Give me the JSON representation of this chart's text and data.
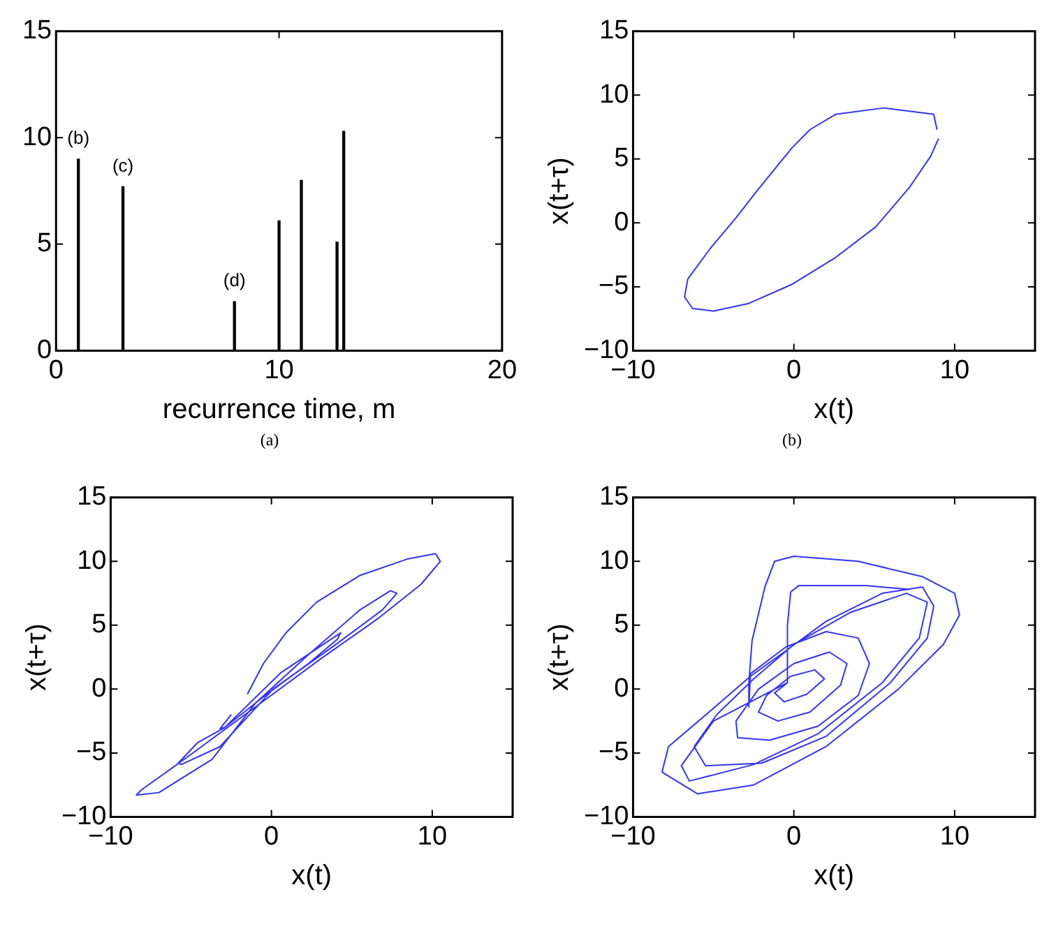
{
  "chart_data": [
    {
      "type": "bar",
      "xlabel": "recurrence time, m",
      "x": [
        1,
        3,
        8,
        10,
        11,
        12.6,
        12.9
      ],
      "values": [
        9,
        7.7,
        2.3,
        6.1,
        8,
        5.1,
        10.3
      ],
      "color": "#000000",
      "xlim": [
        0,
        20
      ],
      "xticks": [
        0,
        10,
        20
      ],
      "ylim": [
        0,
        15
      ],
      "yticks": [
        0,
        5,
        10,
        15
      ],
      "annotations": [
        {
          "text": "(b)",
          "x": 1,
          "y": 9
        },
        {
          "text": "(c)",
          "x": 3,
          "y": 7.7
        },
        {
          "text": "(d)",
          "x": 8,
          "y": 2.3
        },
        "(a)"
      ]
    },
    {
      "type": "line",
      "xlabel": "x(t)",
      "ylabel": "x(t+τ)",
      "marker": "none",
      "line_style": "solid",
      "xlim": [
        -10,
        15
      ],
      "xticks": [
        -10,
        0,
        10
      ],
      "ylim": [
        -10,
        15
      ],
      "yticks": [
        -10,
        -5,
        0,
        5,
        10,
        15
      ],
      "annotations": [
        "(b)"
      ],
      "series": [
        {
          "color": "#3333ff",
          "x": [
            8.9,
            8.7,
            5.6,
            2.6,
            1.0,
            -0.1,
            -1.2,
            -2.3,
            -3.6,
            -5.2,
            -6.6,
            -6.8,
            -6.3,
            -5.0,
            -2.8,
            -0.1,
            2.6,
            5.1,
            7.2,
            8.5,
            9.0
          ],
          "values": [
            7.3,
            8.5,
            9.0,
            8.5,
            7.3,
            5.9,
            4.2,
            2.5,
            0.4,
            -2.0,
            -4.4,
            -5.8,
            -6.7,
            -6.9,
            -6.3,
            -4.8,
            -2.7,
            -0.3,
            2.8,
            5.2,
            6.6
          ]
        }
      ]
    },
    {
      "type": "line",
      "xlabel": "x(t)",
      "ylabel": "x(t+τ)",
      "marker": "none",
      "line_style": "solid",
      "xlim": [
        -10,
        15
      ],
      "xticks": [
        -10,
        0,
        10
      ],
      "ylim": [
        -10,
        15
      ],
      "yticks": [
        -10,
        -5,
        0,
        5,
        10,
        15
      ],
      "series": [
        {
          "color": "#3333ff",
          "x": [
            -1.5,
            -0.5,
            0.9,
            2.8,
            5.5,
            8.5,
            10.2,
            10.5,
            9.3,
            6.6,
            3.1,
            -1.0,
            -5.1,
            -8.1,
            -8.4,
            -7.0,
            -3.7,
            -1.0,
            2.3,
            5.5,
            7.4,
            7.8,
            6.9,
            3.9,
            0.1,
            -3.2,
            -5.6,
            -5.8,
            -4.6,
            -2.9,
            0.6,
            3.1,
            4.3,
            4.1,
            2.3,
            -0.5,
            -2.9,
            -3.2,
            -2.5
          ],
          "values": [
            -0.4,
            2.0,
            4.4,
            6.8,
            8.9,
            10.2,
            10.6,
            10.0,
            8.2,
            5.5,
            2.4,
            -1.4,
            -5.2,
            -7.9,
            -8.3,
            -8.1,
            -5.5,
            -1.1,
            2.7,
            6.2,
            7.7,
            7.5,
            6.2,
            3.4,
            0.0,
            -4.5,
            -5.9,
            -5.8,
            -4.2,
            -3.0,
            1.3,
            3.4,
            4.4,
            3.9,
            2.0,
            -0.6,
            -3.0,
            -3.1,
            -2.0
          ]
        }
      ]
    },
    {
      "type": "line",
      "xlabel": "x(t)",
      "ylabel": "x(t+τ)",
      "marker": "none",
      "line_style": "solid",
      "xlim": [
        -10,
        15
      ],
      "xticks": [
        -10,
        0,
        10
      ],
      "ylim": [
        -10,
        15
      ],
      "yticks": [
        -10,
        -5,
        0,
        5,
        10,
        15
      ],
      "series": [
        {
          "color": "#3333ff",
          "x": [
            -0.4,
            -1.2,
            -0.6,
            0.8,
            1.9,
            1.3,
            -0.2,
            -1.7,
            -2.2,
            -1.0,
            1.0,
            2.9,
            3.3,
            2.2,
            0.0,
            -2.2,
            -3.6,
            -3.5,
            -1.5,
            1.5,
            4.0,
            4.7,
            4.0,
            2.0,
            -0.5,
            -2.7,
            -2.8,
            -2.8,
            -2.6,
            -1.8,
            -1.2,
            0,
            4.0,
            8.0,
            10.0,
            10.3,
            9.3,
            6.5,
            2.0,
            -2.5,
            -6.0,
            -8.2,
            -7.8,
            -5.0,
            -2.7,
            -0.5,
            2.0,
            5.5,
            8.0,
            8.7,
            8.3,
            6.0,
            2.0,
            -2.0,
            -5.5,
            -6.2,
            -4.8,
            -2.5,
            0.0,
            3.5,
            7.0,
            8.3,
            7.8,
            5.5,
            1.5,
            -2.5,
            -6.5,
            -7.0,
            -5.0,
            -0.4,
            -0.4,
            -0.2,
            0.3,
            4.5,
            7.2
          ],
          "values": [
            0.5,
            -0.3,
            -1.0,
            -0.4,
            0.8,
            1.5,
            1.0,
            -0.5,
            -1.8,
            -2.5,
            -1.8,
            0.3,
            2.0,
            2.9,
            2.0,
            0.0,
            -2.5,
            -3.8,
            -4.0,
            -2.9,
            -0.5,
            2.0,
            4.0,
            4.5,
            3.3,
            1.2,
            -1.4,
            0.5,
            3.8,
            8.0,
            10.0,
            10.4,
            10.0,
            8.8,
            7.5,
            5.8,
            3.5,
            0,
            -4.5,
            -7.5,
            -8.2,
            -6.5,
            -4.5,
            -1.5,
            1.0,
            3.0,
            5.3,
            7.5,
            8.0,
            6.5,
            4.0,
            0.5,
            -3.7,
            -5.8,
            -6.0,
            -4.5,
            -2.0,
            0.8,
            3.5,
            6.0,
            7.5,
            6.8,
            4.0,
            0.5,
            -3.5,
            -5.9,
            -7.2,
            -6.0,
            -2.5,
            0.5,
            5,
            7.6,
            8.1,
            8.1,
            7.8
          ]
        }
      ]
    }
  ]
}
